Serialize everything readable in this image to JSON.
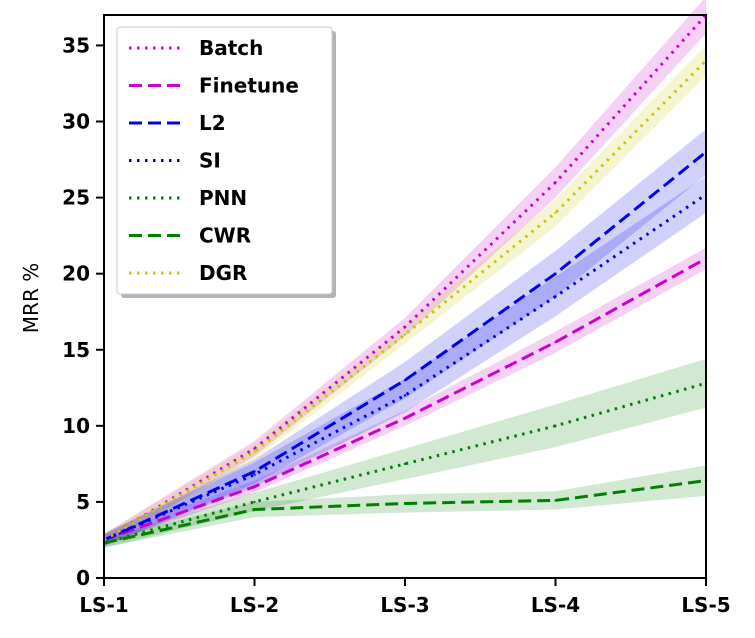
{
  "chart_data": {
    "type": "line",
    "title": "",
    "xlabel": "",
    "ylabel": "MRR %",
    "categories": [
      "LS-1",
      "LS-2",
      "LS-3",
      "LS-4",
      "LS-5"
    ],
    "ylim": [
      0,
      37
    ],
    "yticks": [
      0,
      5,
      10,
      15,
      20,
      25,
      30,
      35
    ],
    "grid": false,
    "legend_position": "top-left",
    "series": [
      {
        "name": "Batch",
        "style": "dotted",
        "color": "#cc00cc",
        "values": [
          2.5,
          8.5,
          16.5,
          26.0,
          37.0
        ],
        "band": [
          0.4,
          0.5,
          0.6,
          1.0,
          1.2
        ]
      },
      {
        "name": "Finetune",
        "style": "dashed",
        "color": "#cc00cc",
        "values": [
          2.5,
          6.0,
          10.5,
          15.5,
          21.0
        ],
        "band": [
          0.3,
          0.4,
          0.5,
          0.7,
          0.7
        ]
      },
      {
        "name": "L2",
        "style": "dashed",
        "color": "#0000ee",
        "values": [
          2.5,
          7.0,
          13.0,
          20.0,
          28.0
        ],
        "band": [
          0.4,
          0.8,
          1.2,
          1.5,
          1.5
        ]
      },
      {
        "name": "SI",
        "style": "dotted",
        "color": "#0000ee",
        "values": [
          2.5,
          6.8,
          12.0,
          18.5,
          25.2
        ],
        "band": [
          0.4,
          0.8,
          1.1,
          1.3,
          1.2
        ]
      },
      {
        "name": "PNN",
        "style": "dotted",
        "color": "#008000",
        "values": [
          2.3,
          5.0,
          7.5,
          10.0,
          12.8
        ],
        "band": [
          0.3,
          0.6,
          1.0,
          1.4,
          1.6
        ]
      },
      {
        "name": "CWR",
        "style": "dashed",
        "color": "#008000",
        "values": [
          2.3,
          4.5,
          4.9,
          5.1,
          6.4
        ],
        "band": [
          0.3,
          0.5,
          0.6,
          0.6,
          1.0
        ]
      },
      {
        "name": "DGR",
        "style": "dotted",
        "color": "#c8c800",
        "values": [
          2.5,
          8.3,
          16.0,
          24.0,
          34.0
        ],
        "band": [
          0.4,
          0.5,
          0.6,
          0.9,
          1.0
        ]
      }
    ]
  }
}
